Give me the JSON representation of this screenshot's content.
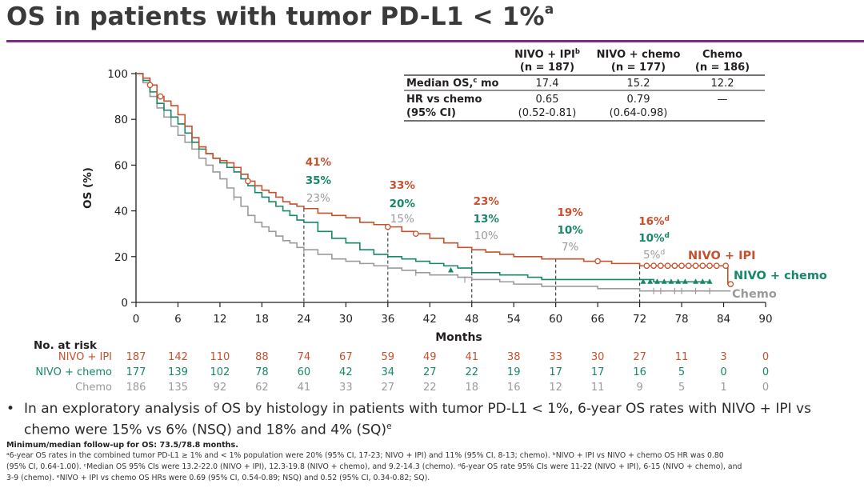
{
  "title": {
    "main": "OS in patients with tumor PD-L1 < 1%",
    "sup": "a"
  },
  "chart_data": {
    "type": "line",
    "subtype": "kaplan-meier",
    "ylabel": "OS (%)",
    "xlabel": "Months",
    "ylim": [
      0,
      100
    ],
    "xlim": [
      0,
      90
    ],
    "x_ticks": [
      0,
      6,
      12,
      18,
      24,
      30,
      36,
      42,
      48,
      54,
      60,
      66,
      72,
      78,
      84,
      90
    ],
    "y_ticks": [
      0,
      20,
      40,
      60,
      80,
      100
    ],
    "grid": false,
    "series": [
      {
        "name": "NIVO + IPI",
        "color": "#c8502d",
        "points": [
          [
            0,
            100
          ],
          [
            1,
            98
          ],
          [
            2,
            95
          ],
          [
            3,
            90
          ],
          [
            4,
            88
          ],
          [
            5,
            86
          ],
          [
            6,
            82
          ],
          [
            7,
            77
          ],
          [
            8,
            72
          ],
          [
            9,
            68
          ],
          [
            10,
            65
          ],
          [
            11,
            63
          ],
          [
            12,
            62
          ],
          [
            13,
            61
          ],
          [
            14,
            59
          ],
          [
            15,
            56
          ],
          [
            16,
            53
          ],
          [
            17,
            51
          ],
          [
            18,
            49
          ],
          [
            19,
            48
          ],
          [
            20,
            46
          ],
          [
            21,
            44
          ],
          [
            22,
            43
          ],
          [
            23,
            42
          ],
          [
            24,
            41
          ],
          [
            26,
            39
          ],
          [
            28,
            38
          ],
          [
            30,
            37
          ],
          [
            32,
            35
          ],
          [
            34,
            34
          ],
          [
            36,
            33
          ],
          [
            38,
            31
          ],
          [
            40,
            30
          ],
          [
            42,
            28
          ],
          [
            44,
            26
          ],
          [
            46,
            24
          ],
          [
            48,
            23
          ],
          [
            50,
            22
          ],
          [
            52,
            21
          ],
          [
            54,
            20
          ],
          [
            56,
            20
          ],
          [
            58,
            19
          ],
          [
            60,
            19
          ],
          [
            62,
            19
          ],
          [
            64,
            18
          ],
          [
            66,
            18
          ],
          [
            68,
            17
          ],
          [
            70,
            17
          ],
          [
            72,
            16
          ],
          [
            74,
            16
          ],
          [
            76,
            16
          ],
          [
            78,
            16
          ],
          [
            80,
            16
          ],
          [
            82,
            16
          ],
          [
            84,
            16
          ],
          [
            84.6,
            8
          ],
          [
            85,
            8
          ]
        ],
        "censors": [
          [
            2,
            95
          ],
          [
            3.5,
            90
          ],
          [
            16,
            53
          ],
          [
            36,
            33
          ],
          [
            40,
            30
          ],
          [
            66,
            18
          ],
          [
            73,
            16
          ],
          [
            74,
            16
          ],
          [
            75,
            16
          ],
          [
            76,
            16
          ],
          [
            77,
            16
          ],
          [
            78,
            16
          ],
          [
            79,
            16
          ],
          [
            80,
            16
          ],
          [
            81,
            16
          ],
          [
            82,
            16
          ],
          [
            83,
            16
          ],
          [
            84.3,
            16
          ],
          [
            85,
            8
          ]
        ]
      },
      {
        "name": "NIVO + chemo",
        "color": "#17876a",
        "points": [
          [
            0,
            100
          ],
          [
            1,
            97
          ],
          [
            2,
            92
          ],
          [
            3,
            87
          ],
          [
            4,
            84
          ],
          [
            5,
            81
          ],
          [
            6,
            78
          ],
          [
            7,
            74
          ],
          [
            8,
            70
          ],
          [
            9,
            67
          ],
          [
            10,
            65
          ],
          [
            11,
            63
          ],
          [
            12,
            61
          ],
          [
            13,
            59
          ],
          [
            14,
            57
          ],
          [
            15,
            54
          ],
          [
            16,
            51
          ],
          [
            17,
            48
          ],
          [
            18,
            46
          ],
          [
            19,
            44
          ],
          [
            20,
            42
          ],
          [
            21,
            40
          ],
          [
            22,
            38
          ],
          [
            23,
            36
          ],
          [
            24,
            35
          ],
          [
            26,
            31
          ],
          [
            28,
            28
          ],
          [
            30,
            26
          ],
          [
            32,
            23
          ],
          [
            34,
            21
          ],
          [
            36,
            20
          ],
          [
            38,
            19
          ],
          [
            40,
            18
          ],
          [
            42,
            17
          ],
          [
            44,
            16
          ],
          [
            46,
            15
          ],
          [
            48,
            13
          ],
          [
            50,
            13
          ],
          [
            52,
            12
          ],
          [
            54,
            12
          ],
          [
            56,
            11
          ],
          [
            58,
            10
          ],
          [
            60,
            10
          ],
          [
            62,
            10
          ],
          [
            64,
            10
          ],
          [
            66,
            10
          ],
          [
            68,
            10
          ],
          [
            70,
            10
          ],
          [
            72,
            10
          ],
          [
            74,
            9
          ],
          [
            76,
            9
          ],
          [
            78,
            9
          ],
          [
            80,
            9
          ],
          [
            82,
            9
          ]
        ],
        "censors": [
          [
            45,
            14
          ],
          [
            72.5,
            9
          ],
          [
            73.5,
            9
          ],
          [
            74.5,
            9
          ],
          [
            75.5,
            9
          ],
          [
            76.5,
            9
          ],
          [
            77.5,
            9
          ],
          [
            78.5,
            9
          ],
          [
            80,
            9
          ],
          [
            81,
            9
          ],
          [
            82,
            9
          ]
        ]
      },
      {
        "name": "Chemo",
        "color": "#9a9a9a",
        "points": [
          [
            0,
            100
          ],
          [
            1,
            96
          ],
          [
            2,
            90
          ],
          [
            3,
            85
          ],
          [
            4,
            81
          ],
          [
            5,
            77
          ],
          [
            6,
            73
          ],
          [
            7,
            70
          ],
          [
            8,
            67
          ],
          [
            9,
            63
          ],
          [
            10,
            60
          ],
          [
            11,
            57
          ],
          [
            12,
            54
          ],
          [
            13,
            50
          ],
          [
            14,
            46
          ],
          [
            15,
            42
          ],
          [
            16,
            38
          ],
          [
            17,
            35
          ],
          [
            18,
            33
          ],
          [
            19,
            31
          ],
          [
            20,
            29
          ],
          [
            21,
            27
          ],
          [
            22,
            26
          ],
          [
            23,
            24
          ],
          [
            24,
            23
          ],
          [
            26,
            21
          ],
          [
            28,
            19
          ],
          [
            30,
            18
          ],
          [
            32,
            17
          ],
          [
            34,
            16
          ],
          [
            36,
            15
          ],
          [
            38,
            14
          ],
          [
            40,
            13
          ],
          [
            42,
            12
          ],
          [
            44,
            12
          ],
          [
            46,
            11
          ],
          [
            48,
            10
          ],
          [
            50,
            10
          ],
          [
            52,
            9
          ],
          [
            54,
            8
          ],
          [
            56,
            8
          ],
          [
            58,
            7
          ],
          [
            60,
            7
          ],
          [
            62,
            7
          ],
          [
            64,
            7
          ],
          [
            66,
            6
          ],
          [
            68,
            6
          ],
          [
            70,
            6
          ],
          [
            72,
            5
          ],
          [
            74,
            5
          ],
          [
            76,
            5
          ],
          [
            78,
            5
          ],
          [
            80,
            5
          ],
          [
            82,
            5
          ],
          [
            84,
            5
          ],
          [
            85,
            5
          ]
        ],
        "censors": [
          [
            14,
            46
          ],
          [
            24,
            23
          ],
          [
            40,
            13
          ],
          [
            47,
            10
          ],
          [
            74,
            5
          ],
          [
            75,
            5
          ],
          [
            77,
            5
          ],
          [
            78,
            5
          ],
          [
            80,
            5
          ],
          [
            82,
            5
          ]
        ]
      }
    ],
    "landmarks": [
      {
        "month": 24,
        "labels": [
          "41%",
          "35%",
          "23%"
        ]
      },
      {
        "month": 36,
        "labels": [
          "33%",
          "20%",
          "15%"
        ]
      },
      {
        "month": 48,
        "labels": [
          "23%",
          "13%",
          "10%"
        ]
      },
      {
        "month": 60,
        "labels": [
          "19%",
          "10%",
          "7%"
        ]
      },
      {
        "month": 72,
        "labels": [
          "16%",
          "10%",
          "5%"
        ],
        "sup": "d"
      }
    ],
    "end_labels": [
      "NIVO + IPI",
      "NIVO + chemo",
      "Chemo"
    ],
    "summary_table": {
      "headers": [
        {
          "line1": "NIVO + IPI",
          "sup": "b",
          "line2": "(n = 187)"
        },
        {
          "line1": "NIVO + chemo",
          "sup": "",
          "line2": "(n = 177)"
        },
        {
          "line1": "Chemo",
          "sup": "",
          "line2": "(n = 186)"
        }
      ],
      "rows": [
        {
          "label": "Median OS,",
          "label_sup": "c",
          "label_tail": " mo",
          "label2": "",
          "values": [
            [
              "17.4"
            ],
            [
              "15.2"
            ],
            [
              "12.2"
            ]
          ]
        },
        {
          "label": "HR vs chemo",
          "label_sup": "",
          "label_tail": "",
          "label2": "(95% CI)",
          "values": [
            [
              "0.65",
              "(0.52-0.81)"
            ],
            [
              "0.79",
              "(0.64-0.98)"
            ],
            [
              "—"
            ]
          ]
        }
      ]
    },
    "at_risk": {
      "title": "No. at risk",
      "rows": [
        {
          "label": "NIVO + IPI",
          "values": [
            "187",
            "142",
            "110",
            "88",
            "74",
            "67",
            "59",
            "49",
            "41",
            "38",
            "33",
            "30",
            "27",
            "11",
            "3",
            "0"
          ]
        },
        {
          "label": "NIVO + chemo",
          "values": [
            "177",
            "139",
            "102",
            "78",
            "60",
            "42",
            "34",
            "27",
            "22",
            "19",
            "17",
            "17",
            "16",
            "5",
            "0",
            "0"
          ]
        },
        {
          "label": "Chemo",
          "values": [
            "186",
            "135",
            "92",
            "62",
            "41",
            "33",
            "27",
            "22",
            "18",
            "16",
            "12",
            "11",
            "9",
            "5",
            "1",
            "0"
          ]
        }
      ]
    }
  },
  "bullet": {
    "text1": "In an exploratory analysis of OS by histology in patients with tumor PD-L1 < 1%, 6-year OS rates with NIVO + IPI vs",
    "text2": "chemo were 15% vs 6% (NSQ) and 18% and 4% (SQ)",
    "sup": "e"
  },
  "footnotes": {
    "followup": "Minimum/median follow-up for OS: 73.5/78.8 months.",
    "line1": "ᵃ6-year OS rates in the combined tumor PD-L1 ≥ 1% and < 1% population were 20% (95% CI, 17-23; NIVO + IPI) and 11% (95% CI, 8-13; chemo). ᵇNIVO + IPI vs NIVO + chemo OS HR was 0.80",
    "line2": "(95% CI, 0.64-1.00). ᶜMedian OS 95% CIs were 13.2-22.0 (NIVO + IPI), 12.3-19.8 (NIVO + chemo), and 9.2-14.3 (chemo). ᵈ6-year OS rate 95% CIs were 11-22 (NIVO + IPI), 6-15 (NIVO + chemo), and",
    "line3": "3-9 (chemo). ᵉNIVO + IPI vs chemo OS HRs were 0.69 (95% CI, 0.54-0.89; NSQ) and 0.52 (95% CI, 0.34-0.82; SQ)."
  }
}
